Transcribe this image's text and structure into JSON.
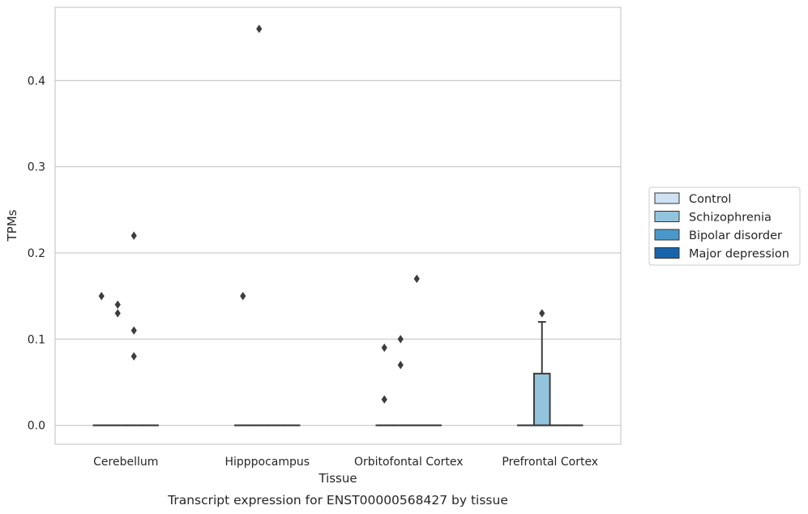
{
  "chart_data": {
    "type": "box",
    "title": "Transcript expression for ENST00000568427 by tissue",
    "xlabel": "Tissue",
    "ylabel": "TPMs",
    "categories": [
      "Cerebellum",
      "Hipppocampus",
      "Orbitofontal Cortex",
      "Prefrontal Cortex"
    ],
    "ylim": [
      -0.022,
      0.485
    ],
    "yticks": [
      0.0,
      0.1,
      0.2,
      0.3,
      0.4
    ],
    "ytick_labels": [
      "0.0",
      "0.1",
      "0.2",
      "0.3",
      "0.4"
    ],
    "grid": "horizontal",
    "legend_placement": "right",
    "series": [
      {
        "name": "Control",
        "color": "#cfe1f2"
      },
      {
        "name": "Schizophrenia",
        "color": "#93c4de"
      },
      {
        "name": "Bipolar disorder",
        "color": "#4a98c9"
      },
      {
        "name": "Major depression",
        "color": "#1764ab"
      }
    ],
    "boxes": [
      {
        "category": "Cerebellum",
        "series": "Control",
        "q1": 0,
        "median": 0,
        "q3": 0,
        "whisker_low": 0,
        "whisker_high": 0,
        "outliers": [
          0.15
        ]
      },
      {
        "category": "Cerebellum",
        "series": "Schizophrenia",
        "q1": 0,
        "median": 0,
        "q3": 0,
        "whisker_low": 0,
        "whisker_high": 0,
        "outliers": [
          0.14,
          0.13
        ]
      },
      {
        "category": "Cerebellum",
        "series": "Bipolar disorder",
        "q1": 0,
        "median": 0,
        "q3": 0,
        "whisker_low": 0,
        "whisker_high": 0,
        "outliers": [
          0.22,
          0.11,
          0.08
        ]
      },
      {
        "category": "Cerebellum",
        "series": "Major depression",
        "q1": 0,
        "median": 0,
        "q3": 0,
        "whisker_low": 0,
        "whisker_high": 0,
        "outliers": []
      },
      {
        "category": "Hipppocampus",
        "series": "Control",
        "q1": 0,
        "median": 0,
        "q3": 0,
        "whisker_low": 0,
        "whisker_high": 0,
        "outliers": [
          0.15
        ]
      },
      {
        "category": "Hipppocampus",
        "series": "Schizophrenia",
        "q1": 0,
        "median": 0,
        "q3": 0,
        "whisker_low": 0,
        "whisker_high": 0,
        "outliers": [
          0.46
        ]
      },
      {
        "category": "Hipppocampus",
        "series": "Bipolar disorder",
        "q1": 0,
        "median": 0,
        "q3": 0,
        "whisker_low": 0,
        "whisker_high": 0,
        "outliers": []
      },
      {
        "category": "Hipppocampus",
        "series": "Major depression",
        "q1": 0,
        "median": 0,
        "q3": 0,
        "whisker_low": 0,
        "whisker_high": 0,
        "outliers": []
      },
      {
        "category": "Orbitofontal Cortex",
        "series": "Control",
        "q1": 0,
        "median": 0,
        "q3": 0,
        "whisker_low": 0,
        "whisker_high": 0,
        "outliers": [
          0.09,
          0.03
        ]
      },
      {
        "category": "Orbitofontal Cortex",
        "series": "Schizophrenia",
        "q1": 0,
        "median": 0,
        "q3": 0,
        "whisker_low": 0,
        "whisker_high": 0,
        "outliers": [
          0.1,
          0.07
        ]
      },
      {
        "category": "Orbitofontal Cortex",
        "series": "Bipolar disorder",
        "q1": 0,
        "median": 0,
        "q3": 0,
        "whisker_low": 0,
        "whisker_high": 0,
        "outliers": [
          0.17
        ]
      },
      {
        "category": "Orbitofontal Cortex",
        "series": "Major depression",
        "q1": 0,
        "median": 0,
        "q3": 0,
        "whisker_low": 0,
        "whisker_high": 0,
        "outliers": []
      },
      {
        "category": "Prefrontal Cortex",
        "series": "Control",
        "q1": 0,
        "median": 0,
        "q3": 0,
        "whisker_low": 0,
        "whisker_high": 0,
        "outliers": []
      },
      {
        "category": "Prefrontal Cortex",
        "series": "Schizophrenia",
        "q1": 0,
        "median": 0,
        "q3": 0.06,
        "whisker_low": 0,
        "whisker_high": 0.12,
        "outliers": [
          0.13
        ]
      },
      {
        "category": "Prefrontal Cortex",
        "series": "Bipolar disorder",
        "q1": 0,
        "median": 0,
        "q3": 0,
        "whisker_low": 0,
        "whisker_high": 0,
        "outliers": []
      },
      {
        "category": "Prefrontal Cortex",
        "series": "Major depression",
        "q1": 0,
        "median": 0,
        "q3": 0,
        "whisker_low": 0,
        "whisker_high": 0,
        "outliers": []
      }
    ]
  }
}
